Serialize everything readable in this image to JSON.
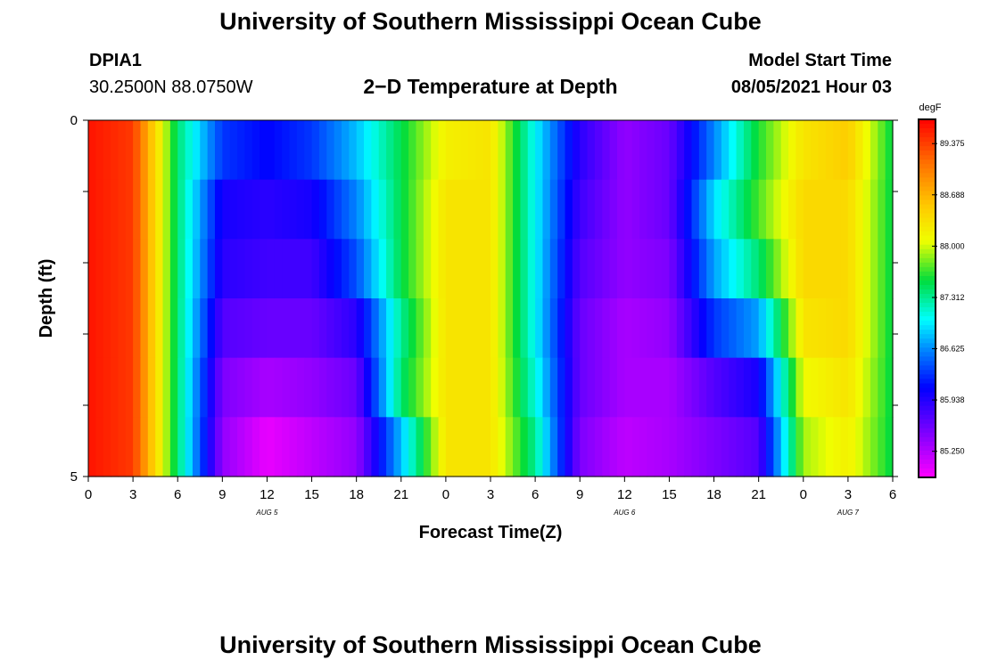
{
  "page": {
    "title_top": "University of Southern Mississippi Ocean Cube",
    "title_bottom": "University of Southern Mississippi Ocean Cube",
    "station_id": "DPIA1",
    "station_coords": "30.2500N  88.0750W",
    "plot_title": "2−D Temperature at Depth",
    "model_start_label": "Model Start Time",
    "model_start_value": "08/05/2021 Hour 03"
  },
  "chart_data": {
    "type": "heatmap",
    "title": "2−D Temperature at Depth",
    "xlabel": "Forecast Time(Z)",
    "ylabel": "Depth (ft)",
    "x_tick_labels": [
      "0",
      "3",
      "6",
      "9",
      "12",
      "15",
      "18",
      "21",
      "0",
      "3",
      "6",
      "9",
      "12",
      "15",
      "18",
      "21",
      "0",
      "3",
      "6"
    ],
    "date_labels": [
      {
        "label": "AUG 5",
        "hour": 12
      },
      {
        "label": "AUG 6",
        "hour": 36
      },
      {
        "label": "AUG 7",
        "hour": 51
      }
    ],
    "x_range_hours": [
      0,
      54
    ],
    "y_range_ft": [
      0,
      5
    ],
    "y_tick_labels": [
      "0",
      "5"
    ],
    "depth_levels_ft": [
      0,
      1,
      2,
      3,
      4,
      5
    ],
    "colorbar": {
      "unit": "degF",
      "min": 84.9,
      "max": 89.7,
      "tick_values": [
        85.25,
        85.938,
        86.625,
        87.312,
        88.0,
        88.688,
        89.375
      ],
      "tick_labels": [
        "85.250",
        "85.938",
        "86.625",
        "87.312",
        "88.000",
        "88.688",
        "89.375"
      ]
    },
    "temperature_profile_description_hours": [
      0,
      3,
      6,
      9,
      12,
      15,
      18,
      21,
      24,
      27,
      30,
      33,
      36,
      39,
      42,
      45,
      48,
      51,
      54
    ],
    "temperature_degF_by_depth": [
      [
        89.6,
        89.4,
        87.4,
        86.3,
        86.1,
        86.3,
        86.8,
        87.5,
        88.2,
        88.3,
        87.0,
        85.9,
        85.4,
        85.6,
        86.6,
        87.6,
        88.3,
        88.5,
        87.5
      ],
      [
        89.6,
        89.4,
        87.4,
        86.0,
        85.9,
        86.0,
        86.6,
        87.5,
        88.3,
        88.3,
        87.0,
        85.8,
        85.4,
        85.6,
        86.9,
        87.7,
        88.4,
        88.4,
        87.5
      ],
      [
        89.6,
        89.4,
        87.4,
        85.9,
        85.8,
        85.8,
        86.4,
        87.5,
        88.3,
        88.3,
        87.0,
        85.7,
        85.4,
        85.5,
        86.7,
        87.4,
        88.4,
        88.4,
        87.5
      ],
      [
        89.6,
        89.4,
        87.4,
        85.7,
        85.6,
        85.6,
        85.9,
        87.3,
        88.3,
        88.3,
        87.0,
        85.6,
        85.3,
        85.4,
        86.3,
        86.7,
        88.3,
        88.4,
        87.5
      ],
      [
        89.6,
        89.4,
        87.4,
        85.5,
        85.3,
        85.4,
        85.6,
        87.4,
        88.3,
        88.3,
        87.1,
        85.6,
        85.3,
        85.3,
        85.7,
        86.0,
        88.1,
        88.3,
        87.5
      ],
      [
        89.6,
        89.4,
        87.4,
        85.4,
        85.0,
        85.2,
        85.4,
        86.8,
        88.3,
        88.3,
        87.3,
        85.5,
        85.2,
        85.3,
        85.5,
        85.7,
        87.9,
        88.2,
        87.5
      ]
    ]
  }
}
